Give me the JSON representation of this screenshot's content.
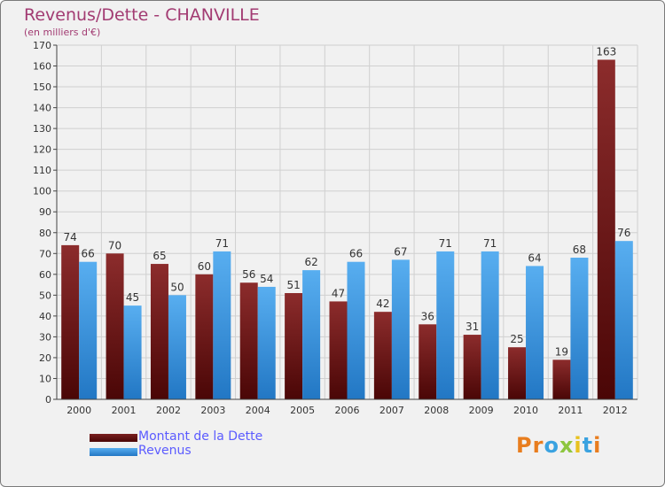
{
  "header": {
    "title": "Revenus/Dette - CHANVILLE",
    "subtitle": "(en milliers d'€)"
  },
  "chart_data": {
    "type": "bar",
    "title": "Revenus/Dette - CHANVILLE",
    "subtitle": "(en milliers d'€)",
    "categories": [
      "2000",
      "2001",
      "2002",
      "2003",
      "2004",
      "2005",
      "2006",
      "2007",
      "2008",
      "2009",
      "2010",
      "2011",
      "2012"
    ],
    "series": [
      {
        "name": "Montant de la Dette",
        "color": "#7a1f1f",
        "values": [
          74,
          70,
          65,
          60,
          56,
          51,
          47,
          42,
          36,
          31,
          25,
          19,
          163
        ]
      },
      {
        "name": "Revenus",
        "color": "#3f9fe5",
        "values": [
          66,
          45,
          50,
          71,
          54,
          62,
          66,
          67,
          71,
          71,
          64,
          68,
          76
        ]
      }
    ],
    "ylim": [
      0,
      170
    ],
    "yticks": [
      0,
      10,
      20,
      30,
      40,
      50,
      60,
      70,
      80,
      90,
      100,
      110,
      120,
      130,
      140,
      150,
      160,
      170
    ],
    "grid": true,
    "legend_position": "bottom-left"
  },
  "legend": {
    "items": [
      {
        "label": "Montant de la Dette",
        "color": "#7a1f1f"
      },
      {
        "label": "Revenus",
        "color": "#3f9fe5"
      }
    ]
  },
  "logo": {
    "letters": [
      "P",
      "r",
      "o",
      "x",
      "i",
      "t",
      "i"
    ],
    "colors": [
      "#e87d1e",
      "#e87d1e",
      "#3aa2e0",
      "#8dc63f",
      "#e8c21e",
      "#3aa2e0",
      "#e87d1e"
    ]
  }
}
